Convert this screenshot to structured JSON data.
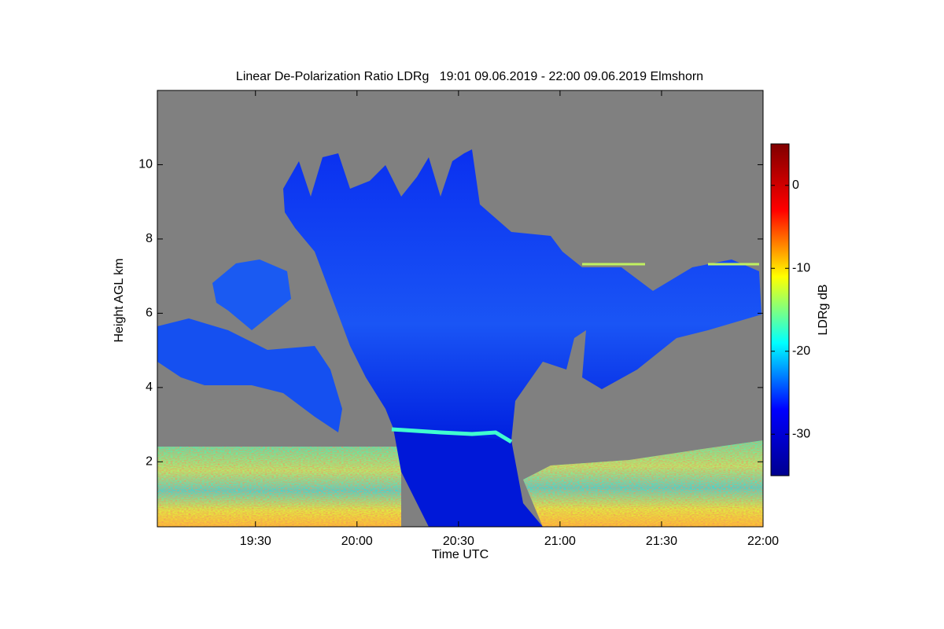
{
  "chart_data": {
    "type": "heatmap",
    "title": "Linear De-Polarization Ratio LDRg   19:01 09.06.2019 - 22:00 09.06.2019 Elmshorn",
    "x_label": "Time UTC",
    "y_label": "Height AGL km",
    "xlim": [
      1141,
      1320
    ],
    "xticks": [
      {
        "value": 1170,
        "label": "19:30"
      },
      {
        "value": 1200,
        "label": "20:00"
      },
      {
        "value": 1230,
        "label": "20:30"
      },
      {
        "value": 1260,
        "label": "21:00"
      },
      {
        "value": 1290,
        "label": "21:30"
      },
      {
        "value": 1320,
        "label": "22:00"
      }
    ],
    "ylim": [
      0.25,
      12
    ],
    "yticks": [
      2,
      4,
      6,
      8,
      10
    ],
    "colorbar": {
      "label": "LDRg dB",
      "clim": [
        -35,
        5
      ],
      "ticks": [
        -30,
        -20,
        -10,
        0
      ],
      "colormap": "jet"
    }
  }
}
